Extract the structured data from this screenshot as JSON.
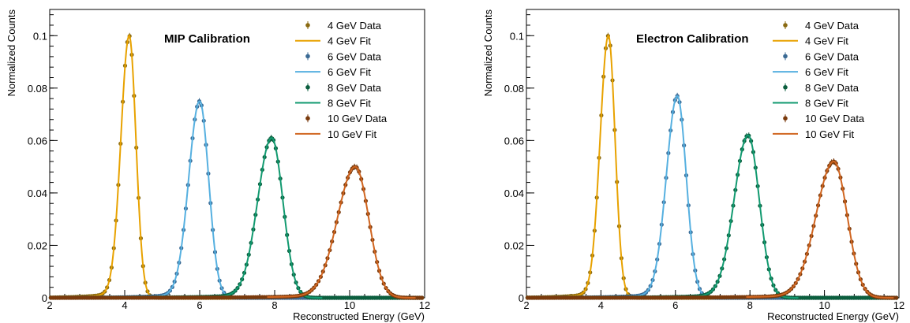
{
  "chart_data": [
    {
      "type": "line",
      "title": "MIP Calibration",
      "xlabel": "Reconstructed Energy (GeV)",
      "ylabel": "Normalized Counts",
      "xlim": [
        2,
        12
      ],
      "ylim": [
        0,
        0.11
      ],
      "xticks": [
        "2",
        "4",
        "6",
        "8",
        "10",
        "12"
      ],
      "yticks": [
        "0",
        "0.02",
        "0.04",
        "0.06",
        "0.08",
        "0.1"
      ],
      "grid": false,
      "legend_position": "top-right",
      "series": [
        {
          "name": "4 GeV Data",
          "kind": "points",
          "color": "#8a6a12",
          "peak_x": 4.12,
          "peak_y": 0.1,
          "sigma_left": 0.22,
          "sigma_right": 0.18
        },
        {
          "name": "4 GeV Fit",
          "kind": "curve",
          "color": "#e8a200",
          "peak_x": 4.12,
          "peak_y": 0.1,
          "sigma_left": 0.22,
          "sigma_right": 0.18
        },
        {
          "name": "6 GeV Data",
          "kind": "points",
          "color": "#3a6a94",
          "peak_x": 6.0,
          "peak_y": 0.075,
          "sigma_left": 0.29,
          "sigma_right": 0.24
        },
        {
          "name": "6 GeV Fit",
          "kind": "curve",
          "color": "#56b0e0",
          "peak_x": 6.0,
          "peak_y": 0.075,
          "sigma_left": 0.29,
          "sigma_right": 0.24
        },
        {
          "name": "8 GeV Data",
          "kind": "points",
          "color": "#0b5e3e",
          "peak_x": 7.92,
          "peak_y": 0.061,
          "sigma_left": 0.37,
          "sigma_right": 0.3
        },
        {
          "name": "8 GeV Fit",
          "kind": "curve",
          "color": "#129a70",
          "peak_x": 7.92,
          "peak_y": 0.061,
          "sigma_left": 0.37,
          "sigma_right": 0.3
        },
        {
          "name": "10 GeV Data",
          "kind": "points",
          "color": "#7a3a0c",
          "peak_x": 10.15,
          "peak_y": 0.05,
          "sigma_left": 0.47,
          "sigma_right": 0.36
        },
        {
          "name": "10 GeV Fit",
          "kind": "curve",
          "color": "#d06520",
          "peak_x": 10.15,
          "peak_y": 0.05,
          "sigma_left": 0.47,
          "sigma_right": 0.36
        }
      ]
    },
    {
      "type": "line",
      "title": "Electron Calibration",
      "xlabel": "Reconstructed Energy (GeV)",
      "ylabel": "Normalized Counts",
      "xlim": [
        2,
        12
      ],
      "ylim": [
        0,
        0.11
      ],
      "xticks": [
        "2",
        "4",
        "6",
        "8",
        "10",
        "12"
      ],
      "yticks": [
        "0",
        "0.02",
        "0.04",
        "0.06",
        "0.08",
        "0.1"
      ],
      "grid": false,
      "legend_position": "top-right",
      "series": [
        {
          "name": "4 GeV Data",
          "kind": "points",
          "color": "#8a6a12",
          "peak_x": 4.2,
          "peak_y": 0.1,
          "sigma_left": 0.22,
          "sigma_right": 0.18
        },
        {
          "name": "4 GeV Fit",
          "kind": "curve",
          "color": "#e8a200",
          "peak_x": 4.2,
          "peak_y": 0.1,
          "sigma_left": 0.22,
          "sigma_right": 0.18
        },
        {
          "name": "6 GeV Data",
          "kind": "points",
          "color": "#3a6a94",
          "peak_x": 6.05,
          "peak_y": 0.077,
          "sigma_left": 0.29,
          "sigma_right": 0.24
        },
        {
          "name": "6 GeV Fit",
          "kind": "curve",
          "color": "#56b0e0",
          "peak_x": 6.05,
          "peak_y": 0.077,
          "sigma_left": 0.29,
          "sigma_right": 0.24
        },
        {
          "name": "8 GeV Data",
          "kind": "points",
          "color": "#0b5e3e",
          "peak_x": 7.95,
          "peak_y": 0.062,
          "sigma_left": 0.37,
          "sigma_right": 0.3
        },
        {
          "name": "8 GeV Fit",
          "kind": "curve",
          "color": "#129a70",
          "peak_x": 7.95,
          "peak_y": 0.062,
          "sigma_left": 0.37,
          "sigma_right": 0.3
        },
        {
          "name": "10 GeV Data",
          "kind": "points",
          "color": "#7a3a0c",
          "peak_x": 10.25,
          "peak_y": 0.052,
          "sigma_left": 0.47,
          "sigma_right": 0.36
        },
        {
          "name": "10 GeV Fit",
          "kind": "curve",
          "color": "#d06520",
          "peak_x": 10.25,
          "peak_y": 0.052,
          "sigma_left": 0.47,
          "sigma_right": 0.36
        }
      ]
    }
  ]
}
